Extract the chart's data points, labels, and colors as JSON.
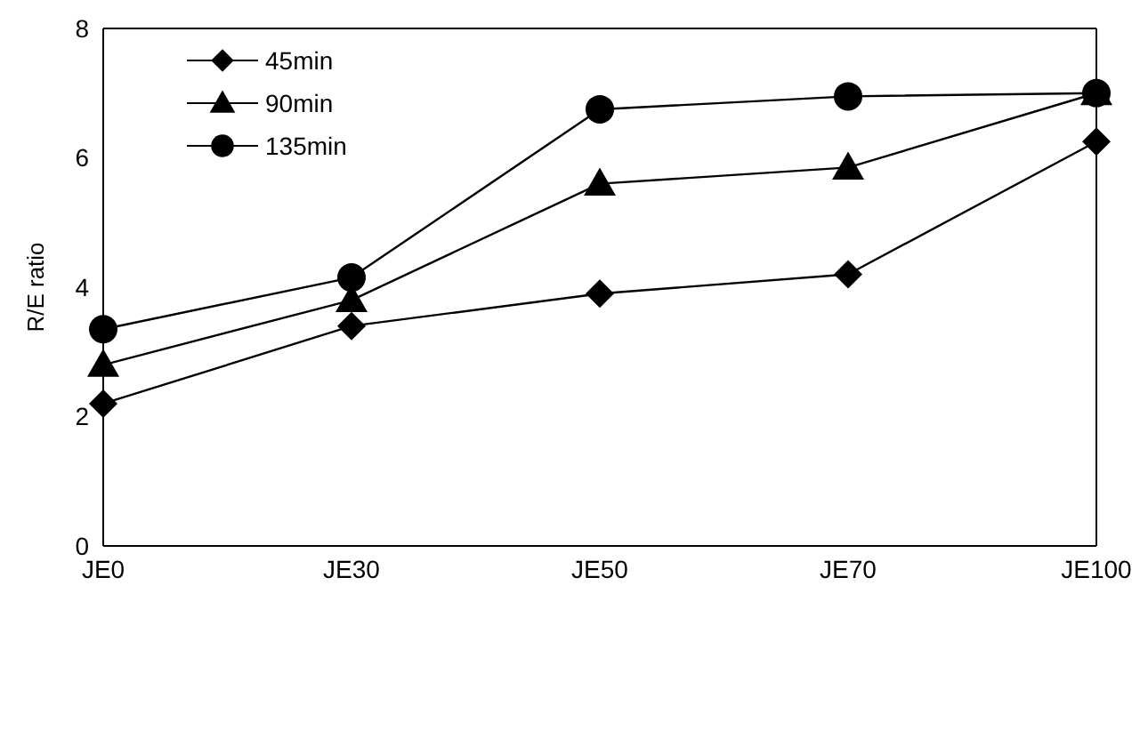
{
  "chart_data": {
    "type": "line",
    "ylabel": "R/E ratio",
    "categories": [
      "JE0",
      "JE30",
      "JE50",
      "JE70",
      "JE100"
    ],
    "series": [
      {
        "name": "45min",
        "color": "#000000",
        "marker": "diamond",
        "values": [
          2.2,
          3.4,
          3.9,
          4.2,
          6.25
        ]
      },
      {
        "name": "90min",
        "color": "#000000",
        "marker": "triangle",
        "values": [
          2.8,
          3.8,
          5.6,
          5.85,
          7.0
        ]
      },
      {
        "name": "135min",
        "color": "#000000",
        "marker": "circle",
        "values": [
          3.35,
          4.15,
          6.75,
          6.95,
          7.0
        ]
      }
    ],
    "ylim": [
      0,
      8
    ],
    "yticks": [
      0,
      2,
      4,
      6,
      8
    ],
    "legend": "top left",
    "line_style": "solid"
  }
}
